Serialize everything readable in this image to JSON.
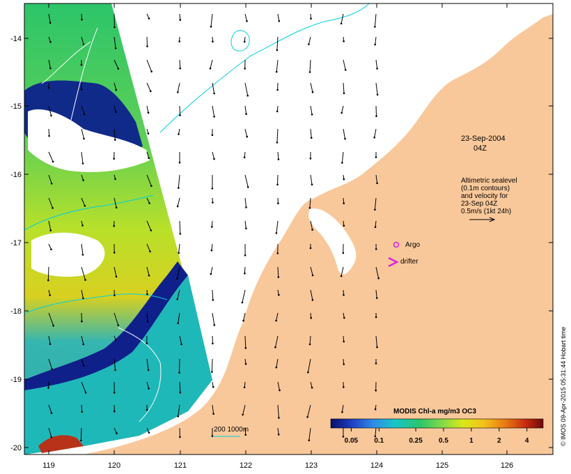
{
  "map": {
    "date_label": "23-Sep-2004",
    "time_label": "04Z",
    "altimetry_note": [
      "Altimetric sealevel",
      "(0.1m contours)",
      "and velocity for",
      "23-Sep 04Z",
      "0.5m/s (1kt 24h)"
    ],
    "argo_label": "Argo",
    "drifter_label": "drifter",
    "depth_legend_label": "200  1000m",
    "credit": "© IMOS 09-Apr-2015 05:31:44 Hobart time",
    "x_ticks": [
      "119",
      "120",
      "121",
      "122",
      "123",
      "124",
      "125",
      "126"
    ],
    "y_ticks": [
      "-14",
      "-15",
      "-16",
      "-17",
      "-18",
      "-19",
      "-20"
    ]
  },
  "colorbar": {
    "title": "MODIS Chl-a mg/m3 OC3",
    "ticks": [
      "0.05",
      "0.1",
      "0.25",
      "0.5",
      "1",
      "2",
      "4"
    ],
    "scale": "log",
    "colors": [
      "#08106b",
      "#1f3fc0",
      "#2f8ce6",
      "#17c5c9",
      "#2cc56a",
      "#7fd84a",
      "#d8e81a",
      "#f4c21a",
      "#ea7a12",
      "#c42a10",
      "#6e0a0a"
    ]
  },
  "colors": {
    "land": "#f9c89a",
    "coast_contour": "#00d0e0",
    "argo_marker": "#e020e0",
    "drifter_marker": "#e020e0"
  }
}
